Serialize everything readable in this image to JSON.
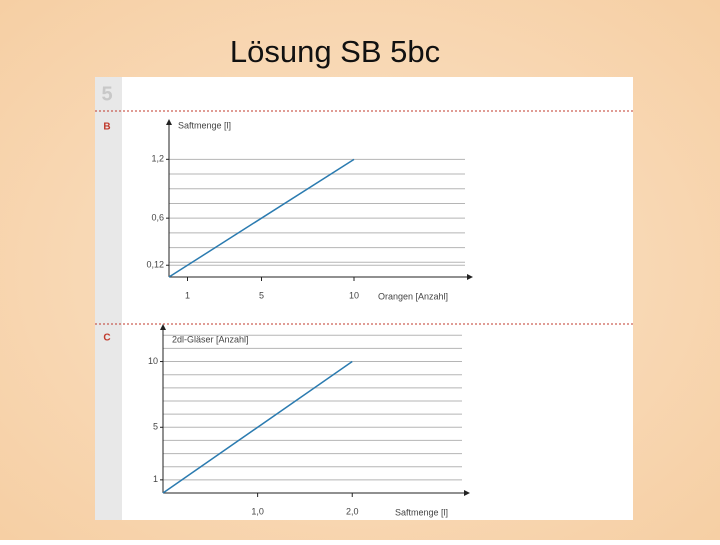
{
  "title": "Lösung SB 5bc",
  "section": "5",
  "chart_data": [
    {
      "type": "line",
      "label": "B",
      "x_label": "Orangen [Anzahl]",
      "y_label": "Saftmenge [l]",
      "x": [
        0,
        10
      ],
      "values": [
        0,
        1.2
      ],
      "color": "#2b7bb0",
      "xlim": [
        0,
        16
      ],
      "ylim": [
        0,
        1.55
      ],
      "xticks": [
        1,
        5,
        10
      ],
      "yticks": [
        {
          "value": 0.12,
          "label": "0,12"
        },
        {
          "value": 0.6,
          "label": "0,6"
        },
        {
          "value": 1.2,
          "label": "1,2"
        }
      ],
      "ygrid": [
        0.12,
        0.15,
        0.3,
        0.45,
        0.6,
        0.75,
        0.9,
        1.05,
        1.2
      ]
    },
    {
      "type": "line",
      "label": "C",
      "x_label": "Saftmenge [l]",
      "y_label": "2dl-Gläser [Anzahl]",
      "x": [
        0,
        2
      ],
      "values": [
        0,
        10
      ],
      "color": "#2b7bb0",
      "xlim": [
        0,
        3.16
      ],
      "ylim": [
        0,
        12.4
      ],
      "xticks": [
        {
          "value": 1,
          "label": "1,0"
        },
        {
          "value": 2,
          "label": "2,0"
        }
      ],
      "yticks": [
        1,
        5,
        10
      ],
      "ygrid": [
        1,
        2,
        3,
        4,
        5,
        6,
        7,
        8,
        9,
        10,
        11,
        12
      ]
    }
  ]
}
